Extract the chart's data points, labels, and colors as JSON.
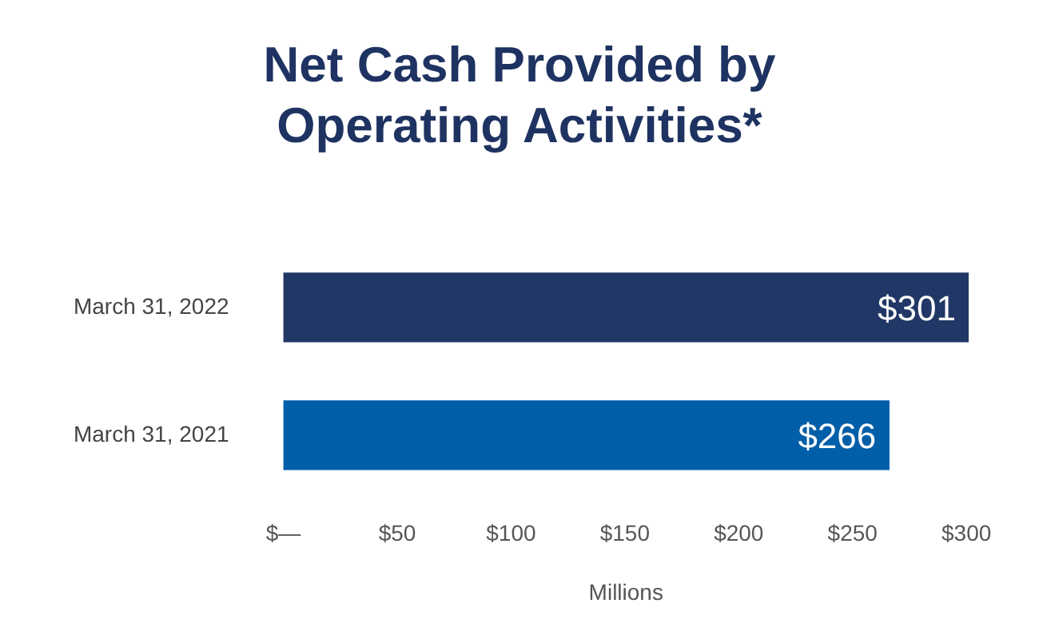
{
  "chart_data": {
    "type": "bar",
    "orientation": "horizontal",
    "title": "Net Cash Provided by Operating Activities*",
    "xlabel": "Millions",
    "categories": [
      "March 31, 2022",
      "March 31, 2021"
    ],
    "values": [
      301,
      266
    ],
    "colors": [
      "#213765",
      "#015ea8"
    ],
    "value_labels": [
      "$301",
      "$266"
    ],
    "xlim": [
      0,
      301
    ],
    "xticks": [
      {
        "value": 0,
        "label": "$—"
      },
      {
        "value": 50,
        "label": "$50"
      },
      {
        "value": 100,
        "label": "$100"
      },
      {
        "value": 150,
        "label": "$150"
      },
      {
        "value": 200,
        "label": "$200"
      },
      {
        "value": 250,
        "label": "$250"
      },
      {
        "value": 300,
        "label": "$300"
      }
    ],
    "grid": false,
    "legend": false
  }
}
